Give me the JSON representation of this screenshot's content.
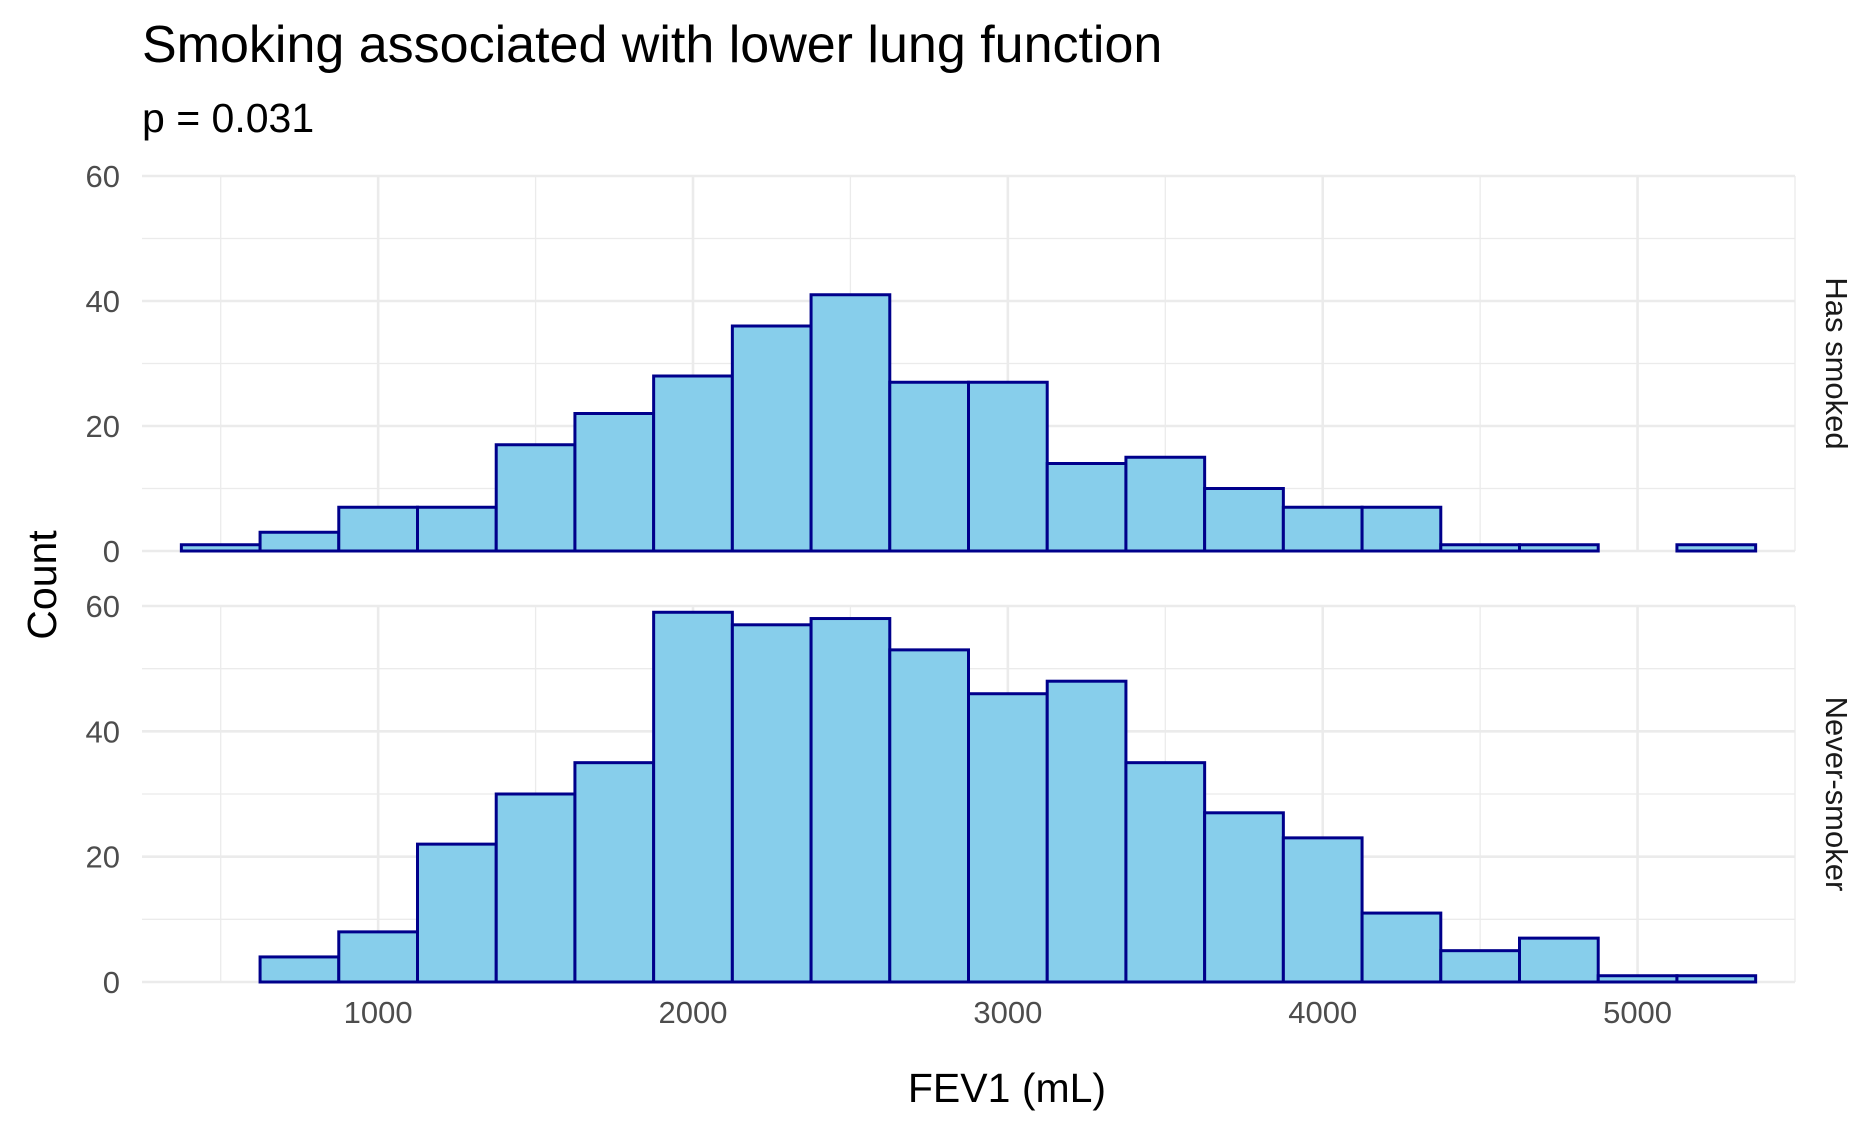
{
  "chart_data": {
    "type": "bar",
    "title": "Smoking associated with lower lung function",
    "subtitle": "p = 0.031",
    "xlabel": "FEV1 (mL)",
    "ylabel": "Count",
    "xlim": [
      250,
      5500
    ],
    "ylim": [
      0,
      60
    ],
    "x_ticks": [
      1000,
      2000,
      3000,
      4000,
      5000
    ],
    "x_tick_labels": [
      "1000",
      "2000",
      "3000",
      "4000",
      "5000"
    ],
    "y_ticks": [
      0,
      20,
      40,
      60
    ],
    "y_tick_labels": [
      "0",
      "20",
      "40",
      "60"
    ],
    "bin_width": 250,
    "bin_centers": [
      500,
      750,
      1000,
      1250,
      1500,
      1750,
      2000,
      2250,
      2500,
      2750,
      3000,
      3250,
      3500,
      3750,
      4000,
      4250,
      4500,
      4750,
      5000,
      5250
    ],
    "grid": true,
    "fill_color": "#87CEEB",
    "outline_color": "#00008B",
    "facets": [
      {
        "label": "Has smoked",
        "values": [
          1,
          3,
          7,
          7,
          17,
          22,
          28,
          36,
          41,
          27,
          27,
          14,
          15,
          10,
          7,
          7,
          1,
          1,
          0,
          1
        ]
      },
      {
        "label": "Never-smoker",
        "values": [
          0,
          4,
          8,
          22,
          30,
          35,
          59,
          57,
          58,
          53,
          46,
          48,
          35,
          27,
          23,
          11,
          5,
          7,
          1,
          1
        ]
      }
    ]
  }
}
